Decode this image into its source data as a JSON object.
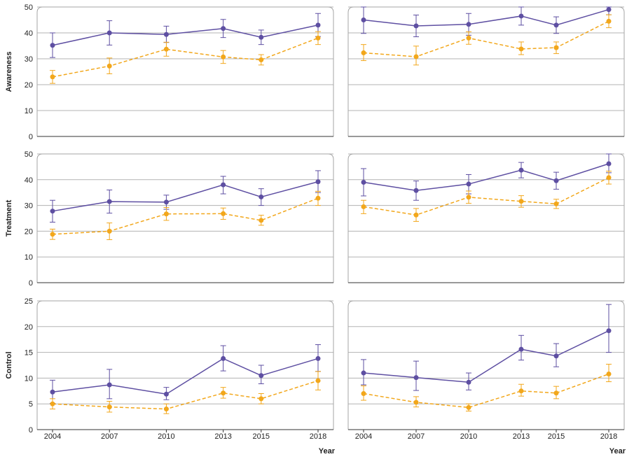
{
  "colors": {
    "series_a": "#5e4fa2",
    "series_b": "#f2a71b",
    "grid": "#b3b3b3",
    "panel_border": "#a6a6a6"
  },
  "chart_data": {
    "type": "line",
    "xlabel": "Year",
    "x_ticks": [
      2004,
      2007,
      2010,
      2013,
      2015,
      2018
    ],
    "grid": true,
    "columns": 2,
    "rows": [
      {
        "ylabel": "Awareness",
        "ylim": [
          0,
          50
        ],
        "yticks": [
          0,
          10,
          20,
          30,
          40,
          50
        ]
      },
      {
        "ylabel": "Treatment",
        "ylim": [
          0,
          50
        ],
        "yticks": [
          0,
          10,
          20,
          30,
          40,
          50
        ]
      },
      {
        "ylabel": "Control",
        "ylim": [
          0,
          25
        ],
        "yticks": [
          0,
          5,
          10,
          15,
          20,
          25
        ]
      }
    ],
    "panels": [
      {
        "row": 0,
        "col": 0,
        "series": [
          {
            "style": "solid",
            "color": "#5e4fa2",
            "values": [
              35.2,
              40.0,
              39.4,
              41.7,
              38.3,
              43.0
            ],
            "lower": [
              30.5,
              35.3,
              36.3,
              38.2,
              35.5,
              38.6
            ],
            "upper": [
              40.0,
              44.7,
              42.6,
              45.2,
              41.1,
              47.5
            ]
          },
          {
            "style": "dashed",
            "color": "#f2a71b",
            "values": [
              23.0,
              27.2,
              33.7,
              30.7,
              29.6,
              38.0
            ],
            "lower": [
              20.5,
              24.2,
              31.0,
              28.2,
              27.6,
              35.5
            ],
            "upper": [
              25.5,
              30.3,
              36.4,
              33.2,
              31.6,
              40.5
            ]
          }
        ]
      },
      {
        "row": 0,
        "col": 1,
        "series": [
          {
            "style": "solid",
            "color": "#5e4fa2",
            "values": [
              45.0,
              42.7,
              43.3,
              46.5,
              43.0,
              49.0
            ],
            "lower": [
              39.8,
              38.5,
              39.1,
              43.0,
              39.8,
              47.0
            ],
            "upper": [
              50.0,
              46.9,
              47.5,
              50.0,
              46.2,
              50.0
            ]
          },
          {
            "style": "dashed",
            "color": "#f2a71b",
            "values": [
              32.3,
              30.8,
              38.0,
              33.8,
              34.3,
              44.5
            ],
            "lower": [
              29.3,
              27.6,
              35.6,
              31.6,
              32.0,
              42.0
            ],
            "upper": [
              35.5,
              34.9,
              40.4,
              36.5,
              36.5,
              47.0
            ]
          }
        ]
      },
      {
        "row": 1,
        "col": 0,
        "series": [
          {
            "style": "solid",
            "color": "#5e4fa2",
            "values": [
              27.8,
              31.5,
              31.3,
              38.0,
              33.3,
              39.2
            ],
            "lower": [
              23.5,
              27.0,
              28.5,
              34.5,
              30.0,
              35.0
            ],
            "upper": [
              32.0,
              36.0,
              34.0,
              41.3,
              36.5,
              43.5
            ]
          },
          {
            "style": "dashed",
            "color": "#f2a71b",
            "values": [
              18.8,
              20.0,
              26.7,
              26.8,
              24.2,
              32.8
            ],
            "lower": [
              16.8,
              16.7,
              24.2,
              24.6,
              22.3,
              30.0
            ],
            "upper": [
              20.8,
              23.2,
              29.2,
              29.0,
              26.2,
              35.5
            ]
          }
        ]
      },
      {
        "row": 1,
        "col": 1,
        "series": [
          {
            "style": "solid",
            "color": "#5e4fa2",
            "values": [
              39.0,
              35.8,
              38.3,
              43.7,
              39.6,
              46.2
            ],
            "lower": [
              33.7,
              32.0,
              34.5,
              40.7,
              36.3,
              42.7
            ],
            "upper": [
              44.3,
              39.5,
              42.0,
              46.7,
              42.9,
              50.0
            ]
          },
          {
            "style": "dashed",
            "color": "#f2a71b",
            "values": [
              29.5,
              26.3,
              33.2,
              31.6,
              30.6,
              40.8
            ],
            "lower": [
              26.8,
              23.8,
              30.8,
              29.3,
              28.8,
              38.3
            ],
            "upper": [
              32.0,
              28.8,
              35.6,
              33.8,
              32.4,
              43.3
            ]
          }
        ]
      },
      {
        "row": 2,
        "col": 0,
        "series": [
          {
            "style": "solid",
            "color": "#5e4fa2",
            "values": [
              7.3,
              8.7,
              6.9,
              13.8,
              10.5,
              13.8
            ],
            "lower": [
              5.1,
              6.0,
              5.8,
              11.4,
              8.9,
              11.3
            ],
            "upper": [
              9.6,
              11.7,
              8.2,
              16.3,
              12.5,
              16.5
            ]
          },
          {
            "style": "dashed",
            "color": "#f2a71b",
            "values": [
              5.0,
              4.4,
              4.0,
              7.1,
              6.0,
              9.5
            ],
            "lower": [
              4.0,
              3.4,
              3.1,
              6.1,
              5.0,
              7.7
            ],
            "upper": [
              6.0,
              5.5,
              5.0,
              8.2,
              7.0,
              11.3
            ]
          }
        ]
      },
      {
        "row": 2,
        "col": 1,
        "series": [
          {
            "style": "solid",
            "color": "#5e4fa2",
            "values": [
              11.0,
              10.1,
              9.2,
              15.6,
              14.3,
              19.2
            ],
            "lower": [
              8.7,
              7.6,
              7.7,
              13.5,
              12.2,
              15.0
            ],
            "upper": [
              13.6,
              13.3,
              11.0,
              18.3,
              16.7,
              24.3
            ]
          },
          {
            "style": "dashed",
            "color": "#f2a71b",
            "values": [
              7.0,
              5.3,
              4.3,
              7.5,
              7.1,
              10.8
            ],
            "lower": [
              5.7,
              4.4,
              3.6,
              6.5,
              6.0,
              9.3
            ],
            "upper": [
              8.5,
              6.4,
              5.0,
              8.8,
              8.4,
              12.7
            ]
          }
        ]
      }
    ]
  }
}
